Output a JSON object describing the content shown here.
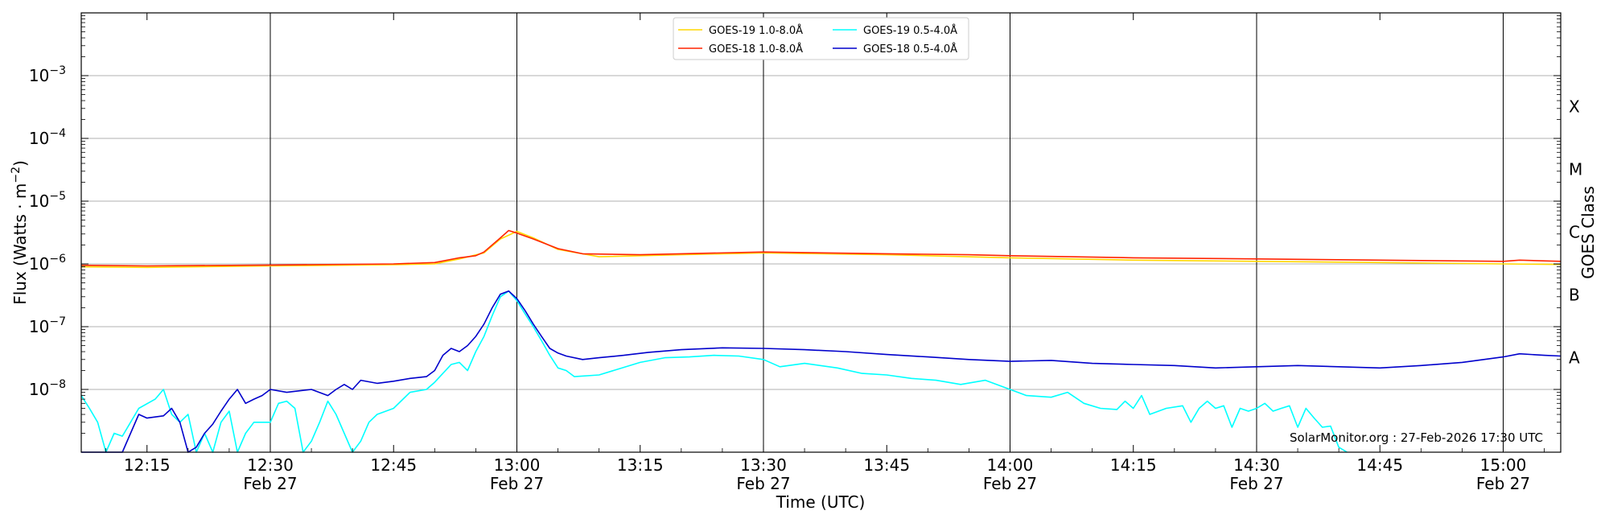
{
  "chart_data": {
    "type": "line",
    "xlabel": "Time (UTC)",
    "ylabel": "Flux (Watts · m",
    "ylabel_sup": "−2",
    "ylabel_close": ")",
    "right_label": "GOES Class",
    "credit": "SolarMonitor.org : 27-Feb-2026 17:30 UTC",
    "x_range": [
      "12:07",
      "15:07"
    ],
    "y_scale": "log",
    "y_range": [
      1e-09,
      0.01
    ],
    "grid": "horizontal at decades; vertical lines every 30 min",
    "legend_position": "top-center",
    "colors": {
      "goes19_long": "#ffd700",
      "goes18_long": "#ff2400",
      "goes19_short": "#00ffff",
      "goes18_short": "#0000cc"
    },
    "y_ticks": [
      {
        "value": 1e-08,
        "base": "10",
        "exp": "−8"
      },
      {
        "value": 1e-07,
        "base": "10",
        "exp": "−7"
      },
      {
        "value": 1e-06,
        "base": "10",
        "exp": "−6"
      },
      {
        "value": 1e-05,
        "base": "10",
        "exp": "−5"
      },
      {
        "value": 0.0001,
        "base": "10",
        "exp": "−4"
      },
      {
        "value": 0.001,
        "base": "10",
        "exp": "−3"
      }
    ],
    "x_ticks": [
      {
        "time": "12:15",
        "line1": "12:15",
        "line2": ""
      },
      {
        "time": "12:30",
        "line1": "12:30",
        "line2": "Feb 27"
      },
      {
        "time": "12:45",
        "line1": "12:45",
        "line2": ""
      },
      {
        "time": "13:00",
        "line1": "13:00",
        "line2": "Feb 27"
      },
      {
        "time": "13:15",
        "line1": "13:15",
        "line2": ""
      },
      {
        "time": "13:30",
        "line1": "13:30",
        "line2": "Feb 27"
      },
      {
        "time": "13:45",
        "line1": "13:45",
        "line2": ""
      },
      {
        "time": "14:00",
        "line1": "14:00",
        "line2": "Feb 27"
      },
      {
        "time": "14:15",
        "line1": "14:15",
        "line2": ""
      },
      {
        "time": "14:30",
        "line1": "14:30",
        "line2": "Feb 27"
      },
      {
        "time": "14:45",
        "line1": "14:45",
        "line2": ""
      },
      {
        "time": "15:00",
        "line1": "15:00",
        "line2": "Feb 27"
      }
    ],
    "goes_classes": [
      {
        "label": "X",
        "value": 0.00032
      },
      {
        "label": "M",
        "value": 3.2e-05
      },
      {
        "label": "C",
        "value": 3.2e-06
      },
      {
        "label": "B",
        "value": 3.2e-07
      },
      {
        "label": "A",
        "value": 3.2e-08
      }
    ],
    "series": [
      {
        "name": "GOES-19 1.0-8.0Å",
        "color": "#ffd700",
        "points": [
          [
            "12:07",
            9e-07
          ],
          [
            "12:15",
            8.8e-07
          ],
          [
            "12:30",
            9.3e-07
          ],
          [
            "12:45",
            9.7e-07
          ],
          [
            "12:50",
            1e-06
          ],
          [
            "12:53",
            1.2e-06
          ],
          [
            "12:56",
            1.5e-06
          ],
          [
            "12:58",
            2.5e-06
          ],
          [
            "13:00",
            3.3e-06
          ],
          [
            "13:02",
            2.6e-06
          ],
          [
            "13:05",
            1.7e-06
          ],
          [
            "13:10",
            1.3e-06
          ],
          [
            "13:20",
            1.4e-06
          ],
          [
            "13:30",
            1.5e-06
          ],
          [
            "13:45",
            1.4e-06
          ],
          [
            "14:00",
            1.25e-06
          ],
          [
            "14:15",
            1.15e-06
          ],
          [
            "14:30",
            1.1e-06
          ],
          [
            "14:45",
            1.05e-06
          ],
          [
            "15:00",
            1e-06
          ],
          [
            "15:07",
            9.8e-07
          ]
        ]
      },
      {
        "name": "GOES-18 1.0-8.0Å",
        "color": "#ff2400",
        "points": [
          [
            "12:07",
            9.5e-07
          ],
          [
            "12:15",
            9.3e-07
          ],
          [
            "12:30",
            9.6e-07
          ],
          [
            "12:45",
            1e-06
          ],
          [
            "12:50",
            1.05e-06
          ],
          [
            "12:53",
            1.25e-06
          ],
          [
            "12:55",
            1.35e-06
          ],
          [
            "12:56",
            1.55e-06
          ],
          [
            "12:58",
            2.6e-06
          ],
          [
            "12:59",
            3.4e-06
          ],
          [
            "13:00",
            3.1e-06
          ],
          [
            "13:02",
            2.5e-06
          ],
          [
            "13:05",
            1.75e-06
          ],
          [
            "13:08",
            1.45e-06
          ],
          [
            "13:15",
            1.4e-06
          ],
          [
            "13:20",
            1.45e-06
          ],
          [
            "13:30",
            1.55e-06
          ],
          [
            "13:45",
            1.45e-06
          ],
          [
            "13:55",
            1.4e-06
          ],
          [
            "14:00",
            1.35e-06
          ],
          [
            "14:15",
            1.25e-06
          ],
          [
            "14:30",
            1.2e-06
          ],
          [
            "14:45",
            1.15e-06
          ],
          [
            "15:00",
            1.1e-06
          ],
          [
            "15:02",
            1.15e-06
          ],
          [
            "15:07",
            1.1e-06
          ]
        ]
      },
      {
        "name": "GOES-19 0.5-4.0Å",
        "color": "#00ffff",
        "points": [
          [
            "12:07",
            8e-09
          ],
          [
            "12:08",
            5e-09
          ],
          [
            "12:09",
            3e-09
          ],
          [
            "12:10",
            1e-09
          ],
          [
            "12:11",
            2e-09
          ],
          [
            "12:12",
            1.8e-09
          ],
          [
            "12:13",
            3e-09
          ],
          [
            "12:14",
            5e-09
          ],
          [
            "12:16",
            7e-09
          ],
          [
            "12:17",
            1e-08
          ],
          [
            "12:18",
            4e-09
          ],
          [
            "12:19",
            3e-09
          ],
          [
            "12:20",
            4e-09
          ],
          [
            "12:21",
            1e-09
          ],
          [
            "12:22",
            2e-09
          ],
          [
            "12:23",
            1e-09
          ],
          [
            "12:24",
            3e-09
          ],
          [
            "12:25",
            4.5e-09
          ],
          [
            "12:26",
            1e-09
          ],
          [
            "12:27",
            2e-09
          ],
          [
            "12:28",
            3e-09
          ],
          [
            "12:30",
            3e-09
          ],
          [
            "12:31",
            6e-09
          ],
          [
            "12:32",
            6.5e-09
          ],
          [
            "12:33",
            5e-09
          ],
          [
            "12:34",
            1e-09
          ],
          [
            "12:35",
            1.5e-09
          ],
          [
            "12:36",
            3e-09
          ],
          [
            "12:37",
            6.5e-09
          ],
          [
            "12:38",
            4e-09
          ],
          [
            "12:39",
            2e-09
          ],
          [
            "12:40",
            1e-09
          ],
          [
            "12:41",
            1.5e-09
          ],
          [
            "12:42",
            3e-09
          ],
          [
            "12:43",
            4e-09
          ],
          [
            "12:45",
            5e-09
          ],
          [
            "12:47",
            9e-09
          ],
          [
            "12:49",
            1e-08
          ],
          [
            "12:50",
            1.3e-08
          ],
          [
            "12:51",
            1.8e-08
          ],
          [
            "12:52",
            2.5e-08
          ],
          [
            "12:53",
            2.7e-08
          ],
          [
            "12:54",
            2e-08
          ],
          [
            "12:55",
            4e-08
          ],
          [
            "12:56",
            7e-08
          ],
          [
            "12:57",
            1.5e-07
          ],
          [
            "12:58",
            3e-07
          ],
          [
            "12:59",
            3.7e-07
          ],
          [
            "13:00",
            2.6e-07
          ],
          [
            "13:01",
            1.6e-07
          ],
          [
            "13:02",
            1e-07
          ],
          [
            "13:03",
            6e-08
          ],
          [
            "13:04",
            3.5e-08
          ],
          [
            "13:05",
            2.2e-08
          ],
          [
            "13:06",
            2e-08
          ],
          [
            "13:07",
            1.6e-08
          ],
          [
            "13:10",
            1.7e-08
          ],
          [
            "13:15",
            2.7e-08
          ],
          [
            "13:18",
            3.2e-08
          ],
          [
            "13:21",
            3.3e-08
          ],
          [
            "13:24",
            3.5e-08
          ],
          [
            "13:27",
            3.4e-08
          ],
          [
            "13:30",
            3e-08
          ],
          [
            "13:32",
            2.3e-08
          ],
          [
            "13:35",
            2.6e-08
          ],
          [
            "13:39",
            2.2e-08
          ],
          [
            "13:42",
            1.8e-08
          ],
          [
            "13:45",
            1.7e-08
          ],
          [
            "13:48",
            1.5e-08
          ],
          [
            "13:51",
            1.4e-08
          ],
          [
            "13:54",
            1.2e-08
          ],
          [
            "13:57",
            1.4e-08
          ],
          [
            "14:00",
            1e-08
          ],
          [
            "14:02",
            8e-09
          ],
          [
            "14:05",
            7.5e-09
          ],
          [
            "14:07",
            9e-09
          ],
          [
            "14:09",
            6e-09
          ],
          [
            "14:11",
            5e-09
          ],
          [
            "14:13",
            4.8e-09
          ],
          [
            "14:14",
            6.5e-09
          ],
          [
            "14:15",
            5e-09
          ],
          [
            "14:16",
            8e-09
          ],
          [
            "14:17",
            4e-09
          ],
          [
            "14:19",
            5e-09
          ],
          [
            "14:21",
            5.5e-09
          ],
          [
            "14:22",
            3e-09
          ],
          [
            "14:23",
            5e-09
          ],
          [
            "14:24",
            6.5e-09
          ],
          [
            "14:25",
            5e-09
          ],
          [
            "14:26",
            5.5e-09
          ],
          [
            "14:27",
            2.5e-09
          ],
          [
            "14:28",
            5e-09
          ],
          [
            "14:29",
            4.5e-09
          ],
          [
            "14:30",
            5e-09
          ],
          [
            "14:31",
            6e-09
          ],
          [
            "14:32",
            4.5e-09
          ],
          [
            "14:33",
            5e-09
          ],
          [
            "14:34",
            5.5e-09
          ],
          [
            "14:35",
            2.5e-09
          ],
          [
            "14:36",
            5e-09
          ],
          [
            "14:37",
            3.5e-09
          ],
          [
            "14:38",
            2.5e-09
          ],
          [
            "14:39",
            2.6e-09
          ],
          [
            "14:40",
            1.2e-09
          ],
          [
            "14:41",
            1e-09
          ]
        ]
      },
      {
        "name": "GOES-18 0.5-4.0Å",
        "color": "#0000cc",
        "points": [
          [
            "12:07",
            1e-09
          ],
          [
            "12:12",
            1e-09
          ],
          [
            "12:13",
            2e-09
          ],
          [
            "12:14",
            4e-09
          ],
          [
            "12:15",
            3.5e-09
          ],
          [
            "12:17",
            3.8e-09
          ],
          [
            "12:18",
            5e-09
          ],
          [
            "12:19",
            3e-09
          ],
          [
            "12:20",
            1e-09
          ],
          [
            "12:21",
            1.2e-09
          ],
          [
            "12:22",
            2e-09
          ],
          [
            "12:23",
            2.8e-09
          ],
          [
            "12:24",
            4.5e-09
          ],
          [
            "12:25",
            7e-09
          ],
          [
            "12:26",
            1e-08
          ],
          [
            "12:27",
            6e-09
          ],
          [
            "12:28",
            7e-09
          ],
          [
            "12:29",
            8e-09
          ],
          [
            "12:30",
            1e-08
          ],
          [
            "12:32",
            9e-09
          ],
          [
            "12:35",
            1e-08
          ],
          [
            "12:37",
            8e-09
          ],
          [
            "12:38",
            1e-08
          ],
          [
            "12:39",
            1.2e-08
          ],
          [
            "12:40",
            1e-08
          ],
          [
            "12:41",
            1.4e-08
          ],
          [
            "12:43",
            1.25e-08
          ],
          [
            "12:45",
            1.35e-08
          ],
          [
            "12:47",
            1.5e-08
          ],
          [
            "12:49",
            1.6e-08
          ],
          [
            "12:50",
            2e-08
          ],
          [
            "12:51",
            3.5e-08
          ],
          [
            "12:52",
            4.5e-08
          ],
          [
            "12:53",
            4e-08
          ],
          [
            "12:54",
            5e-08
          ],
          [
            "12:55",
            7e-08
          ],
          [
            "12:56",
            1.1e-07
          ],
          [
            "12:57",
            2e-07
          ],
          [
            "12:58",
            3.3e-07
          ],
          [
            "12:59",
            3.7e-07
          ],
          [
            "13:00",
            2.8e-07
          ],
          [
            "13:01",
            1.8e-07
          ],
          [
            "13:02",
            1.1e-07
          ],
          [
            "13:03",
            7e-08
          ],
          [
            "13:04",
            4.5e-08
          ],
          [
            "13:05",
            3.8e-08
          ],
          [
            "13:06",
            3.4e-08
          ],
          [
            "13:08",
            3e-08
          ],
          [
            "13:10",
            3.2e-08
          ],
          [
            "13:13",
            3.5e-08
          ],
          [
            "13:16",
            3.9e-08
          ],
          [
            "13:20",
            4.3e-08
          ],
          [
            "13:25",
            4.6e-08
          ],
          [
            "13:30",
            4.5e-08
          ],
          [
            "13:35",
            4.3e-08
          ],
          [
            "13:40",
            4e-08
          ],
          [
            "13:45",
            3.6e-08
          ],
          [
            "13:50",
            3.3e-08
          ],
          [
            "13:55",
            3e-08
          ],
          [
            "14:00",
            2.8e-08
          ],
          [
            "14:05",
            2.9e-08
          ],
          [
            "14:10",
            2.6e-08
          ],
          [
            "14:15",
            2.5e-08
          ],
          [
            "14:20",
            2.4e-08
          ],
          [
            "14:25",
            2.2e-08
          ],
          [
            "14:30",
            2.3e-08
          ],
          [
            "14:35",
            2.4e-08
          ],
          [
            "14:40",
            2.3e-08
          ],
          [
            "14:45",
            2.2e-08
          ],
          [
            "14:50",
            2.4e-08
          ],
          [
            "14:55",
            2.7e-08
          ],
          [
            "15:00",
            3.3e-08
          ],
          [
            "15:02",
            3.7e-08
          ],
          [
            "15:05",
            3.5e-08
          ],
          [
            "15:07",
            3.4e-08
          ]
        ]
      }
    ]
  }
}
